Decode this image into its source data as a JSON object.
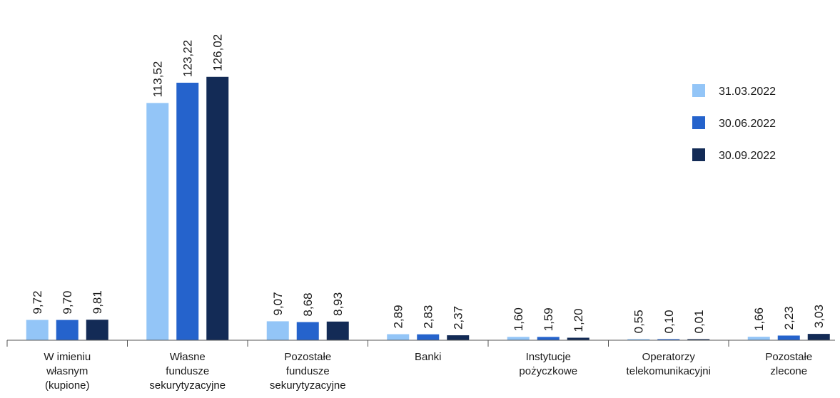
{
  "chart_data": {
    "type": "bar",
    "categories": [
      [
        "W imieniu",
        "własnym",
        "(kupione)"
      ],
      [
        "Własne",
        "fundusze",
        "sekurytyzacyjne"
      ],
      [
        "Pozostałe",
        "fundusze",
        "sekurytyzacyjne"
      ],
      [
        "Banki"
      ],
      [
        "Instytucje",
        "pożyczkowe"
      ],
      [
        "Operatorzy",
        "telekomunikacyjni"
      ],
      [
        "Pozostałe",
        "zlecone"
      ]
    ],
    "series": [
      {
        "name": "31.03.2022",
        "color": "#93c5f7",
        "values": [
          9.72,
          113.52,
          9.07,
          2.89,
          1.6,
          0.55,
          1.66
        ],
        "labels": [
          "9,72",
          "113,52",
          "9,07",
          "2,89",
          "1,60",
          "0,55",
          "1,66"
        ]
      },
      {
        "name": "30.06.2022",
        "color": "#2563cc",
        "values": [
          9.7,
          123.22,
          8.68,
          2.83,
          1.59,
          0.1,
          2.23
        ],
        "labels": [
          "9,70",
          "123,22",
          "8,68",
          "2,83",
          "1,59",
          "0,10",
          "2,23"
        ]
      },
      {
        "name": "30.09.2022",
        "color": "#132b56",
        "values": [
          9.81,
          126.02,
          8.93,
          2.37,
          1.2,
          0.01,
          3.03
        ],
        "labels": [
          "9,81",
          "126,02",
          "8,93",
          "2,37",
          "1,20",
          "0,01",
          "3,03"
        ]
      }
    ],
    "legend_position": "top-right",
    "grid": false,
    "title": "",
    "xlabel": "",
    "ylabel": ""
  }
}
